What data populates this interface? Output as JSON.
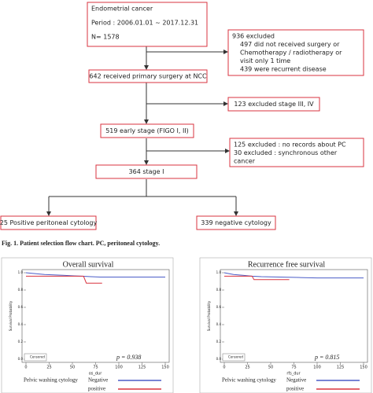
{
  "flowchart": {
    "nodes": [
      {
        "lines": [
          "Endometrial cancer",
          "Period : 2006.01.01 ~ 2017.12.31",
          "N= 1578"
        ]
      },
      {
        "lines": [
          "936 excluded",
          "497 did not received surgery or",
          "Chemotherapy / radiotherapy or",
          "visit only 1 time",
          "439 were recurrent disease"
        ]
      },
      {
        "lines": [
          "642 received primary surgery at NCC"
        ]
      },
      {
        "lines": [
          "123 excluded stage III, IV"
        ]
      },
      {
        "lines": [
          "519 early stage (FIGO I, II)"
        ]
      },
      {
        "lines": [
          "125 excluded : no records about PC",
          "30 excluded  : synchronous other",
          "cancer"
        ]
      },
      {
        "lines": [
          "364 stage I"
        ]
      },
      {
        "lines": [
          "25 Positive peritoneal cytology"
        ]
      },
      {
        "lines": [
          "339 negative cytology"
        ]
      }
    ]
  },
  "caption": "Fig. 1. Patient selection flow chart. PC, peritoneal cytology.",
  "plots": [
    {
      "title": "Overall survival",
      "ylabel": "Survival Probability",
      "xlabel": "os_dur",
      "p_text": "p = 0.938",
      "censored": "Censored",
      "group_label": "Pelvic washing cytology",
      "xlim": [
        0,
        150
      ],
      "ylim": [
        0,
        1
      ],
      "xticks": [
        0,
        25,
        50,
        75,
        100,
        125,
        150
      ],
      "yticks": [
        {
          "value": 0,
          "label": "0.0"
        },
        0.2,
        0.4,
        0.6,
        0.8,
        {
          "value": 1,
          "label": "1.0"
        }
      ],
      "series": [
        {
          "name": "Negative",
          "color": "#4a5cc7",
          "x": [
            0,
            10,
            20,
            30,
            40,
            50,
            60,
            70,
            80,
            100,
            120,
            150
          ],
          "values": [
            1,
            0.99,
            0.98,
            0.975,
            0.97,
            0.965,
            0.96,
            0.955,
            0.95,
            0.95,
            0.95,
            0.95
          ]
        },
        {
          "name": "positive",
          "color": "#d9333f",
          "x": [
            0,
            62,
            65,
            82
          ],
          "values": [
            0.96,
            0.96,
            0.88,
            0.88
          ]
        }
      ]
    },
    {
      "title": "Recurrence free survival",
      "ylabel": "Survival Probability",
      "xlabel": "rfs_dur",
      "p_text": "p = 0.815",
      "censored": "Censored",
      "group_label": "Pelvic washing cytology",
      "xlim": [
        0,
        150
      ],
      "ylim": [
        0,
        1
      ],
      "xticks": [
        0,
        25,
        50,
        75,
        100,
        125,
        150
      ],
      "yticks": [
        {
          "value": 0,
          "label": "0.0"
        },
        0.2,
        0.4,
        0.6,
        0.8,
        {
          "value": 1,
          "label": "1.0"
        }
      ],
      "series": [
        {
          "name": "Negative",
          "color": "#4a5cc7",
          "x": [
            0,
            10,
            20,
            30,
            40,
            60,
            80,
            100,
            120,
            150
          ],
          "values": [
            1,
            0.98,
            0.97,
            0.96,
            0.955,
            0.95,
            0.945,
            0.94,
            0.94,
            0.94
          ]
        },
        {
          "name": "positive",
          "color": "#d9333f",
          "x": [
            0,
            30,
            32,
            70
          ],
          "values": [
            0.96,
            0.96,
            0.92,
            0.92
          ]
        }
      ]
    }
  ]
}
